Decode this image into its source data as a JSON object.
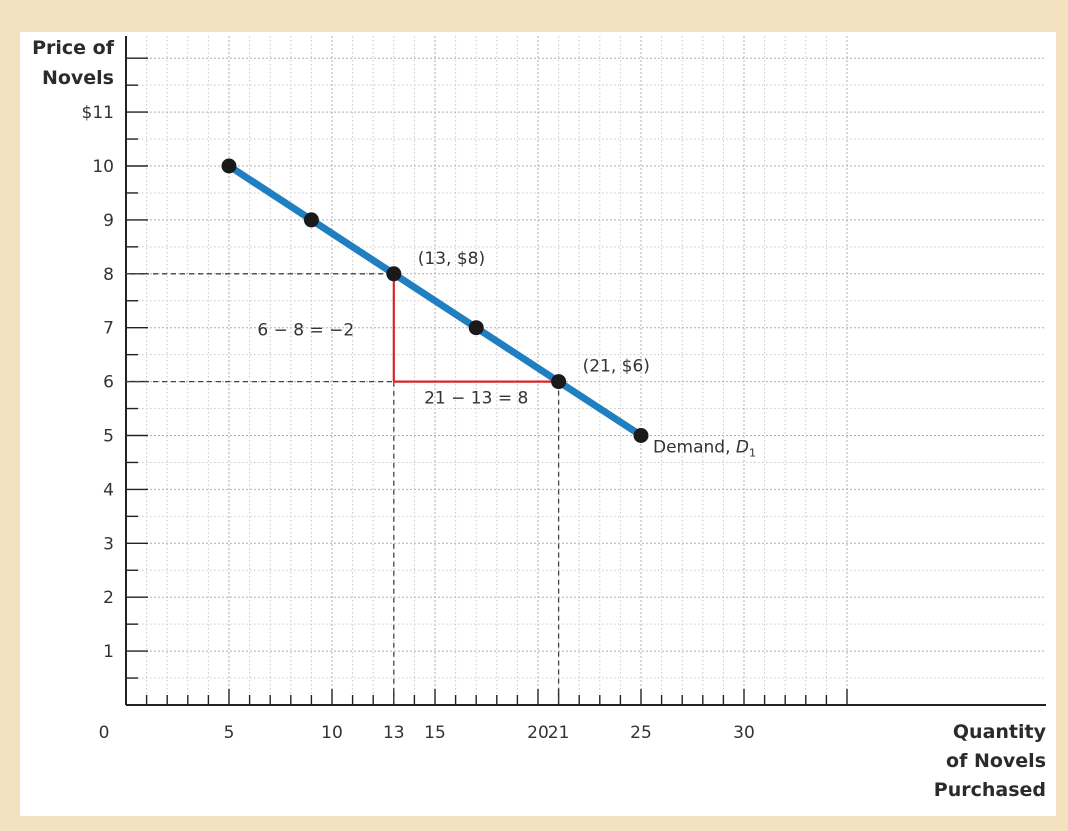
{
  "chart_data": {
    "type": "line",
    "title": "",
    "x_axis": {
      "label_lines": [
        "Quantity",
        "of Novels",
        "Purchased"
      ],
      "range": [
        0,
        35
      ],
      "ticks": [
        0,
        5,
        10,
        13,
        15,
        20,
        21,
        25,
        30
      ],
      "tick_labels": [
        "0",
        "5",
        "10",
        "13",
        "15",
        "20",
        "21",
        "25",
        "30"
      ]
    },
    "y_axis": {
      "label_lines": [
        "Price of",
        "Novels"
      ],
      "range": [
        0,
        12
      ],
      "ticks": [
        1,
        2,
        3,
        4,
        5,
        6,
        7,
        8,
        9,
        10,
        11
      ],
      "tick_labels": [
        "1",
        "2",
        "3",
        "4",
        "5",
        "6",
        "7",
        "8",
        "9",
        "10",
        "$11"
      ]
    },
    "grid": true,
    "series": [
      {
        "name": "Demand, D",
        "name_subscript": "1",
        "color": "#1f7fc0",
        "points": [
          {
            "x": 5,
            "y": 10
          },
          {
            "x": 9,
            "y": 9
          },
          {
            "x": 13,
            "y": 8
          },
          {
            "x": 17,
            "y": 7
          },
          {
            "x": 21,
            "y": 6
          },
          {
            "x": 25,
            "y": 5
          }
        ]
      }
    ],
    "slope_triangle": {
      "color": "#d9252a",
      "from": {
        "x": 13,
        "y": 8
      },
      "to": {
        "x": 21,
        "y": 6
      },
      "rise_label": "6 − 8 = −2",
      "run_label": "21 − 13 = 8"
    },
    "point_labels": [
      {
        "x": 13,
        "y": 8,
        "text": "(13, $8)"
      },
      {
        "x": 21,
        "y": 6,
        "text": "(21, $6)"
      }
    ],
    "guides": [
      {
        "x": 13,
        "y": 8
      },
      {
        "x": 21,
        "y": 6
      }
    ]
  }
}
